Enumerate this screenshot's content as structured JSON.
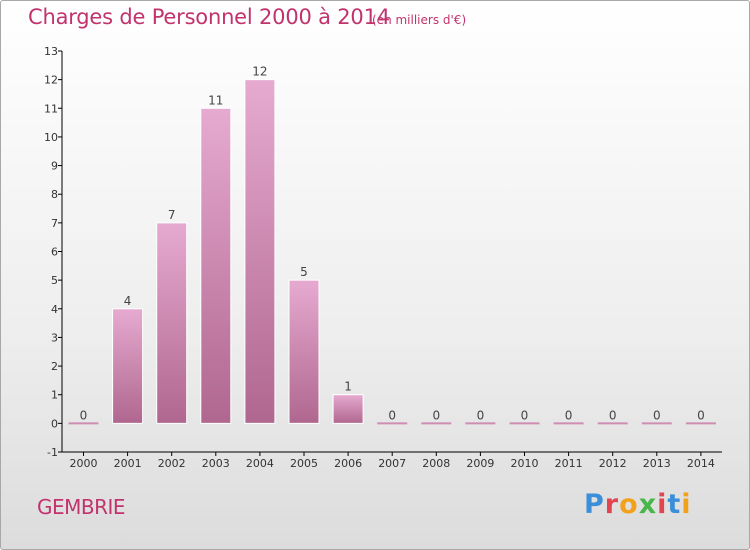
{
  "header": {
    "title": "Charges de Personnel 2000 à 2014",
    "subtitle": "(en milliers d'€)"
  },
  "commune": "GEMBRIE",
  "logo": {
    "text": "Proxiti",
    "colors": [
      "#3b8fd8",
      "#e2454f",
      "#f2a21a",
      "#49b649"
    ]
  },
  "chart_data": {
    "type": "bar",
    "categories": [
      "2000",
      "2001",
      "2002",
      "2003",
      "2004",
      "2005",
      "2006",
      "2007",
      "2008",
      "2009",
      "2010",
      "2011",
      "2012",
      "2013",
      "2014"
    ],
    "values": [
      0,
      4,
      7,
      11,
      12,
      5,
      1,
      0,
      0,
      0,
      0,
      0,
      0,
      0,
      0
    ],
    "data_labels": [
      "0",
      "4",
      "7",
      "11",
      "12",
      "5",
      "1",
      "0",
      "0",
      "0",
      "0",
      "0",
      "0",
      "0",
      "0"
    ],
    "ylim": [
      -1,
      13
    ],
    "yticks": [
      -1,
      0,
      1,
      2,
      3,
      4,
      5,
      6,
      7,
      8,
      9,
      10,
      11,
      12,
      13
    ],
    "grid": false,
    "colors": {
      "bar_top": "#e6aad0",
      "bar_bottom": "#b0678f",
      "text": "#c2336d",
      "axis": "#000000"
    }
  }
}
